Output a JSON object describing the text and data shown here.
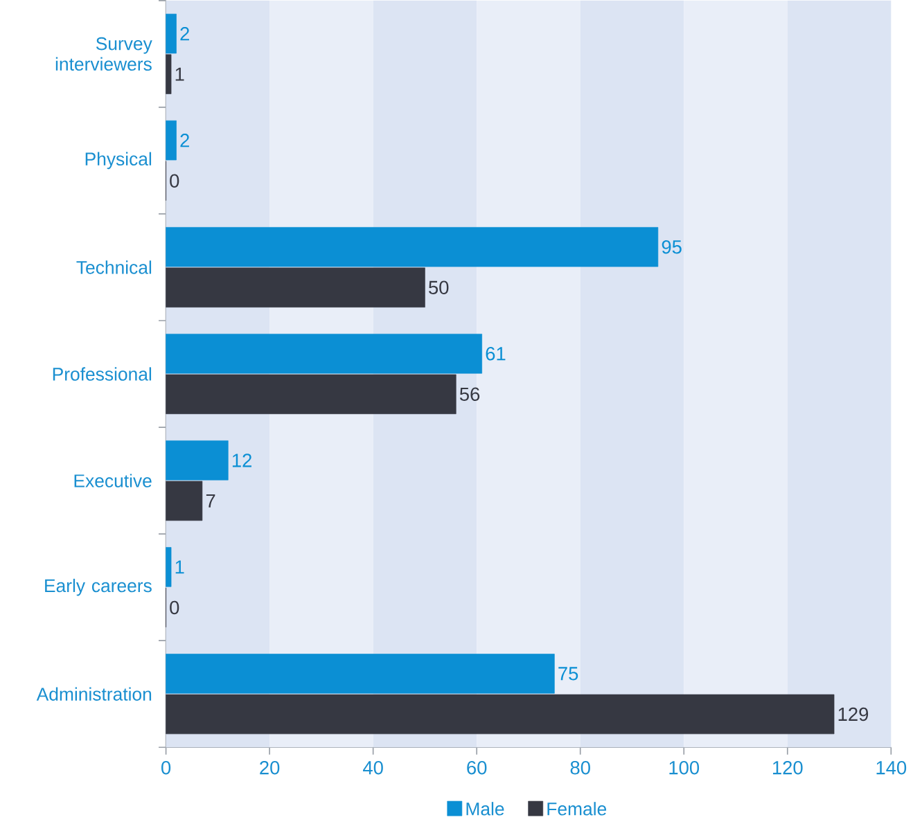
{
  "chart_data": {
    "type": "bar",
    "orientation": "horizontal",
    "categories": [
      "Survey interviewers",
      "Physical",
      "Technical",
      "Professional",
      "Executive",
      "Early careers",
      "Administration"
    ],
    "series": [
      {
        "name": "Male",
        "color": "#0b8fd4",
        "values": [
          2,
          2,
          95,
          61,
          12,
          1,
          75
        ]
      },
      {
        "name": "Female",
        "color": "#363842",
        "values": [
          1,
          0,
          50,
          56,
          7,
          0,
          129
        ]
      }
    ],
    "xlim": [
      0,
      140
    ],
    "xticks": [
      0,
      20,
      40,
      60,
      80,
      100,
      120,
      140
    ],
    "bands": [
      {
        "axis": "x",
        "from": 0,
        "to": 20,
        "color": "#dce4f3"
      },
      {
        "axis": "x",
        "from": 20,
        "to": 40,
        "color": "#e9eef8"
      },
      {
        "axis": "x",
        "from": 40,
        "to": 60,
        "color": "#dce4f3"
      },
      {
        "axis": "x",
        "from": 60,
        "to": 80,
        "color": "#e9eef8"
      },
      {
        "axis": "x",
        "from": 80,
        "to": 100,
        "color": "#dce4f3"
      },
      {
        "axis": "x",
        "from": 100,
        "to": 120,
        "color": "#e9eef8"
      },
      {
        "axis": "x",
        "from": 120,
        "to": 140,
        "color": "#dce4f3"
      }
    ],
    "data_labels": true,
    "legend": "bottom"
  }
}
